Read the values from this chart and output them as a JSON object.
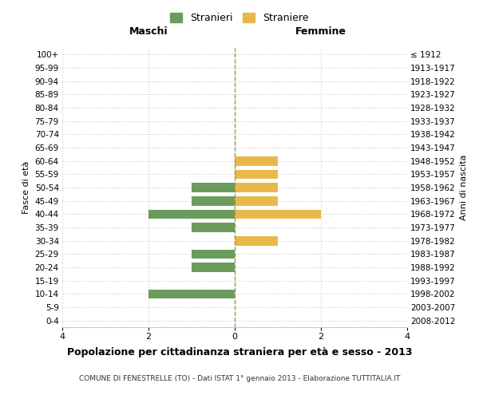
{
  "age_groups": [
    "0-4",
    "5-9",
    "10-14",
    "15-19",
    "20-24",
    "25-29",
    "30-34",
    "35-39",
    "40-44",
    "45-49",
    "50-54",
    "55-59",
    "60-64",
    "65-69",
    "70-74",
    "75-79",
    "80-84",
    "85-89",
    "90-94",
    "95-99",
    "100+"
  ],
  "birth_years": [
    "2008-2012",
    "2003-2007",
    "1998-2002",
    "1993-1997",
    "1988-1992",
    "1983-1987",
    "1978-1982",
    "1973-1977",
    "1968-1972",
    "1963-1967",
    "1958-1962",
    "1953-1957",
    "1948-1952",
    "1943-1947",
    "1938-1942",
    "1933-1937",
    "1928-1932",
    "1923-1927",
    "1918-1922",
    "1913-1917",
    "≤ 1912"
  ],
  "maschi": [
    0,
    0,
    2,
    0,
    1,
    1,
    0,
    1,
    2,
    1,
    1,
    0,
    0,
    0,
    0,
    0,
    0,
    0,
    0,
    0,
    0
  ],
  "femmine": [
    0,
    0,
    0,
    0,
    0,
    0,
    1,
    0,
    2,
    1,
    1,
    1,
    1,
    0,
    0,
    0,
    0,
    0,
    0,
    0,
    0
  ],
  "maschi_color": "#6b9c5e",
  "femmine_color": "#e8b84b",
  "title": "Popolazione per cittadinanza straniera per età e sesso - 2013",
  "subtitle": "COMUNE DI FENESTRELLE (TO) - Dati ISTAT 1° gennaio 2013 - Elaborazione TUTTITALIA.IT",
  "xlabel_left": "Maschi",
  "xlabel_right": "Femmine",
  "ylabel_left": "Fasce di età",
  "ylabel_right": "Anni di nascita",
  "legend_maschi": "Stranieri",
  "legend_femmine": "Straniere",
  "xlim": 4,
  "bar_height": 0.7,
  "bg_color": "#ffffff",
  "grid_color": "#cccccc",
  "center_line_color": "#999944",
  "center_line_style": "--"
}
